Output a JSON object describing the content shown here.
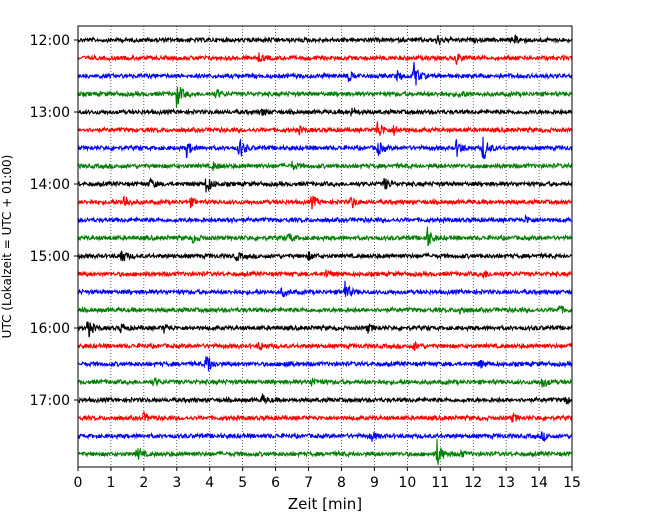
{
  "chart_data": {
    "type": "line",
    "subtype": "helicorder",
    "xlabel": "Zeit  [min]",
    "ylabel": "UTC (Lokalzeit = UTC + 01:00)",
    "xlim": [
      0,
      15
    ],
    "x_ticks": [
      "0",
      "1",
      "2",
      "3",
      "4",
      "5",
      "6",
      "7",
      "8",
      "9",
      "10",
      "11",
      "12",
      "13",
      "14",
      "15"
    ],
    "y_ticks": [
      "12:00",
      "13:00",
      "14:00",
      "15:00",
      "16:00",
      "17:00"
    ],
    "grid": "vertical dotted",
    "trace_colors": [
      "#000000",
      "#ff0000",
      "#0000ff",
      "#008000"
    ],
    "traces": [
      {
        "start": "12:00",
        "color": "#000000",
        "events": [
          {
            "t": 10.9,
            "amp": 0.35
          },
          {
            "t": 13.3,
            "amp": 0.3
          }
        ]
      },
      {
        "start": "12:15",
        "color": "#ff0000",
        "events": [
          {
            "t": 11.5,
            "amp": 0.4
          },
          {
            "t": 5.5,
            "amp": 0.25
          }
        ]
      },
      {
        "start": "12:30",
        "color": "#0000ff",
        "events": [
          {
            "t": 10.2,
            "amp": 0.95
          },
          {
            "t": 8.2,
            "amp": 0.35
          },
          {
            "t": 9.7,
            "amp": 0.3
          }
        ]
      },
      {
        "start": "12:45",
        "color": "#008000",
        "events": [
          {
            "t": 3.0,
            "amp": 0.95
          },
          {
            "t": 4.2,
            "amp": 0.3
          },
          {
            "t": 11.6,
            "amp": 0.3
          }
        ]
      },
      {
        "start": "13:00",
        "color": "#000000",
        "events": [
          {
            "t": 5.6,
            "amp": 0.25
          },
          {
            "t": 8.3,
            "amp": 0.25
          }
        ]
      },
      {
        "start": "13:15",
        "color": "#ff0000",
        "events": [
          {
            "t": 9.1,
            "amp": 0.7
          },
          {
            "t": 9.6,
            "amp": 0.35
          },
          {
            "t": 6.7,
            "amp": 0.25
          }
        ]
      },
      {
        "start": "13:30",
        "color": "#0000ff",
        "events": [
          {
            "t": 3.3,
            "amp": 0.6
          },
          {
            "t": 4.9,
            "amp": 0.8
          },
          {
            "t": 9.1,
            "amp": 0.5
          },
          {
            "t": 11.5,
            "amp": 0.6
          },
          {
            "t": 12.3,
            "amp": 1.0
          }
        ]
      },
      {
        "start": "13:45",
        "color": "#008000",
        "events": [
          {
            "t": 4.1,
            "amp": 0.25
          },
          {
            "t": 6.5,
            "amp": 0.25
          }
        ]
      },
      {
        "start": "14:00",
        "color": "#000000",
        "events": [
          {
            "t": 3.9,
            "amp": 0.7
          },
          {
            "t": 9.3,
            "amp": 0.45
          },
          {
            "t": 2.2,
            "amp": 0.3
          }
        ]
      },
      {
        "start": "14:15",
        "color": "#ff0000",
        "events": [
          {
            "t": 1.4,
            "amp": 0.55
          },
          {
            "t": 7.1,
            "amp": 0.45
          },
          {
            "t": 8.3,
            "amp": 0.45
          },
          {
            "t": 3.4,
            "amp": 0.3
          }
        ]
      },
      {
        "start": "14:30",
        "color": "#0000ff",
        "events": [
          {
            "t": 4.5,
            "amp": 0.25
          },
          {
            "t": 13.6,
            "amp": 0.25
          }
        ]
      },
      {
        "start": "14:45",
        "color": "#008000",
        "events": [
          {
            "t": 10.6,
            "amp": 0.8
          },
          {
            "t": 6.4,
            "amp": 0.3
          },
          {
            "t": 3.5,
            "amp": 0.3
          }
        ]
      },
      {
        "start": "15:00",
        "color": "#000000",
        "events": [
          {
            "t": 1.3,
            "amp": 0.6
          },
          {
            "t": 4.8,
            "amp": 0.3
          },
          {
            "t": 7.0,
            "amp": 0.25
          }
        ]
      },
      {
        "start": "15:15",
        "color": "#ff0000",
        "events": [
          {
            "t": 7.5,
            "amp": 0.3
          },
          {
            "t": 12.3,
            "amp": 0.3
          }
        ]
      },
      {
        "start": "15:30",
        "color": "#0000ff",
        "events": [
          {
            "t": 8.1,
            "amp": 0.75
          },
          {
            "t": 6.2,
            "amp": 0.3
          }
        ]
      },
      {
        "start": "15:45",
        "color": "#008000",
        "events": [
          {
            "t": 11.6,
            "amp": 0.3
          },
          {
            "t": 14.6,
            "amp": 0.3
          }
        ]
      },
      {
        "start": "16:00",
        "color": "#000000",
        "events": [
          {
            "t": 0.3,
            "amp": 0.7
          },
          {
            "t": 1.3,
            "amp": 0.35
          },
          {
            "t": 2.6,
            "amp": 0.3
          },
          {
            "t": 8.8,
            "amp": 0.3
          }
        ]
      },
      {
        "start": "16:15",
        "color": "#ff0000",
        "events": [
          {
            "t": 5.5,
            "amp": 0.3
          },
          {
            "t": 10.2,
            "amp": 0.3
          }
        ]
      },
      {
        "start": "16:30",
        "color": "#0000ff",
        "events": [
          {
            "t": 3.9,
            "amp": 0.85
          },
          {
            "t": 6.3,
            "amp": 0.3
          },
          {
            "t": 12.2,
            "amp": 0.3
          }
        ]
      },
      {
        "start": "16:45",
        "color": "#008000",
        "events": [
          {
            "t": 7.1,
            "amp": 0.35
          },
          {
            "t": 14.1,
            "amp": 0.4
          },
          {
            "t": 2.3,
            "amp": 0.25
          }
        ]
      },
      {
        "start": "17:00",
        "color": "#000000",
        "events": [
          {
            "t": 5.6,
            "amp": 0.3
          },
          {
            "t": 14.8,
            "amp": 0.25
          }
        ]
      },
      {
        "start": "17:15",
        "color": "#ff0000",
        "events": [
          {
            "t": 2.0,
            "amp": 0.3
          },
          {
            "t": 13.2,
            "amp": 0.3
          }
        ]
      },
      {
        "start": "17:30",
        "color": "#0000ff",
        "events": [
          {
            "t": 8.9,
            "amp": 0.35
          },
          {
            "t": 14.1,
            "amp": 0.3
          }
        ]
      },
      {
        "start": "17:45",
        "color": "#008000",
        "events": [
          {
            "t": 1.8,
            "amp": 0.45
          },
          {
            "t": 10.9,
            "amp": 1.0
          },
          {
            "t": 11.6,
            "amp": 0.25
          }
        ]
      }
    ]
  }
}
